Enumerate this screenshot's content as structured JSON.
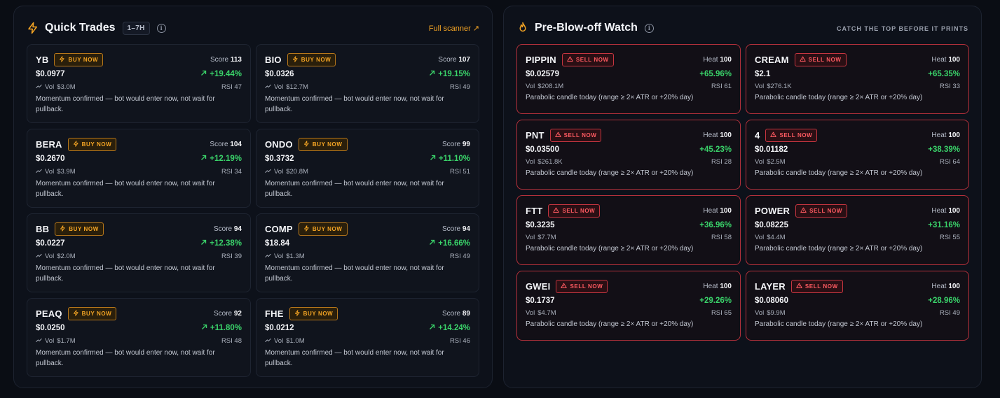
{
  "quick_trades": {
    "title": "Quick Trades",
    "range_badge": "1–7H",
    "link_label": "Full scanner ↗",
    "score_label": "Score",
    "action_label": "BUY NOW",
    "vol_prefix": "Vol",
    "rsi_prefix": "RSI",
    "note": "Momentum confirmed — bot would enter now, not wait for pullback.",
    "accent_color": "#f5a524",
    "cards": [
      {
        "symbol": "YB",
        "score": "113",
        "price": "$0.0977",
        "change": "+19.44%",
        "vol": "$3.0M",
        "rsi": "47"
      },
      {
        "symbol": "BIO",
        "score": "107",
        "price": "$0.0326",
        "change": "+19.15%",
        "vol": "$12.7M",
        "rsi": "49"
      },
      {
        "symbol": "BERA",
        "score": "104",
        "price": "$0.2670",
        "change": "+12.19%",
        "vol": "$3.9M",
        "rsi": "34"
      },
      {
        "symbol": "ONDO",
        "score": "99",
        "price": "$0.3732",
        "change": "+11.10%",
        "vol": "$20.8M",
        "rsi": "51"
      },
      {
        "symbol": "BB",
        "score": "94",
        "price": "$0.0227",
        "change": "+12.38%",
        "vol": "$2.0M",
        "rsi": "39"
      },
      {
        "symbol": "COMP",
        "score": "94",
        "price": "$18.84",
        "change": "+16.66%",
        "vol": "$1.3M",
        "rsi": "49"
      },
      {
        "symbol": "PEAQ",
        "score": "92",
        "price": "$0.0250",
        "change": "+11.80%",
        "vol": "$1.7M",
        "rsi": "48"
      },
      {
        "symbol": "FHE",
        "score": "89",
        "price": "$0.0212",
        "change": "+14.24%",
        "vol": "$1.0M",
        "rsi": "46"
      }
    ]
  },
  "blowoff_watch": {
    "title": "Pre-Blow-off Watch",
    "tagline": "CATCH THE TOP BEFORE IT PRINTS",
    "heat_label": "Heat",
    "action_label": "SELL NOW",
    "vol_prefix": "Vol",
    "rsi_prefix": "RSI",
    "note": "Parabolic candle today (range ≥ 2× ATR or +20% day)",
    "accent_color": "#ff5a61",
    "cards": [
      {
        "symbol": "PIPPIN",
        "heat": "100",
        "price": "$0.02579",
        "change": "+65.96%",
        "vol": "$208.1M",
        "rsi": "61"
      },
      {
        "symbol": "CREAM",
        "heat": "100",
        "price": "$2.1",
        "change": "+65.35%",
        "vol": "$276.1K",
        "rsi": "33"
      },
      {
        "symbol": "PNT",
        "heat": "100",
        "price": "$0.03500",
        "change": "+45.23%",
        "vol": "$261.8K",
        "rsi": "28"
      },
      {
        "symbol": "4",
        "heat": "100",
        "price": "$0.01182",
        "change": "+38.39%",
        "vol": "$2.5M",
        "rsi": "64"
      },
      {
        "symbol": "FTT",
        "heat": "100",
        "price": "$0.3235",
        "change": "+36.96%",
        "vol": "$7.7M",
        "rsi": "58"
      },
      {
        "symbol": "POWER",
        "heat": "100",
        "price": "$0.08225",
        "change": "+31.16%",
        "vol": "$4.4M",
        "rsi": "55"
      },
      {
        "symbol": "GWEI",
        "heat": "100",
        "price": "$0.1737",
        "change": "+29.26%",
        "vol": "$4.7M",
        "rsi": "65"
      },
      {
        "symbol": "LAYER",
        "heat": "100",
        "price": "$0.08060",
        "change": "+28.96%",
        "vol": "$9.9M",
        "rsi": "49"
      }
    ]
  }
}
